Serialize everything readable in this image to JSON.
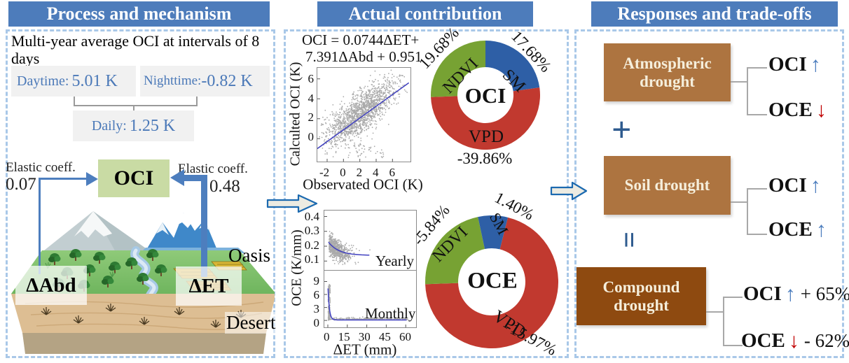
{
  "colors": {
    "header_blue": "#4d7cbb",
    "panel_border_blue": "#a9c8e8",
    "accent_blue": "#4d7ebe",
    "ndvi_green": "#77a233",
    "sm_blue": "#2e5fa6",
    "vpd_red": "#c1392f",
    "drought_brown": "#ad7440",
    "compound_brown": "#8e4a10",
    "oci_box_green": "#c9dba4",
    "down_red": "#c00000",
    "operator_blue": "#2e5b8f"
  },
  "panels": {
    "process": {
      "title": "Process and mechanism",
      "intro": "Multi-year average OCI at intervals of 8 days",
      "daytime": {
        "label": "Daytime:",
        "value": "5.01 K"
      },
      "nighttime": {
        "label": "Nighttime:",
        "value": "-0.82 K"
      },
      "daily": {
        "label": "Daily:",
        "value": "1.25 K"
      },
      "elastic_left": {
        "label": "Elastic coeff.",
        "value": "0.07"
      },
      "elastic_right": {
        "label": "Elastic coeff.",
        "value": "0.48"
      },
      "oci_box": "OCI",
      "oasis": "Oasis",
      "desert": "Desert",
      "delta_abd": "ΔAbd",
      "delta_et": "ΔET"
    },
    "contribution": {
      "title": "Actual contribution"
    },
    "responses": {
      "title": "Responses and trade-offs",
      "plus": "+",
      "equals": "=",
      "atmospheric": {
        "box": "Atmospheric drought",
        "oci": "OCI",
        "oci_arrow": "↑",
        "oce": "OCE",
        "oce_arrow": "↓"
      },
      "soil": {
        "box": "Soil drought",
        "oci": "OCI",
        "oci_arrow": "↑",
        "oce": "OCE",
        "oce_arrow": "↑"
      },
      "compound": {
        "box": "Compound drought",
        "oci": "OCI",
        "oci_arrow": "↑",
        "oci_delta": "+ 65%",
        "oce": "OCE",
        "oce_arrow": "↓",
        "oce_delta": "- 62%"
      }
    }
  },
  "chart_data": [
    {
      "id": "oci_regression_scatter",
      "type": "scatter",
      "title_lines": [
        "OCI = 0.0744ΔET+",
        "7.391ΔAbd + 0.951"
      ],
      "xlabel": "Observated OCI (K)",
      "ylabel": "Calculted OCI (K)",
      "xticks": [
        -2,
        0,
        2,
        4,
        6
      ],
      "yticks": [
        6,
        4,
        2,
        0
      ],
      "xlim": [
        -3.2,
        8.2
      ],
      "ylim": [
        -2.3,
        7.1
      ],
      "grid": false,
      "point_color": "#9b9b9b",
      "trend": {
        "x0": -3.2,
        "y0": -1.0,
        "x1": 8.0,
        "y1": 5.6,
        "color": "#4040c0"
      },
      "gen": {
        "n": 1600,
        "x_mean": 2.2,
        "x_sd": 2.2,
        "slope": 0.58,
        "intercept": 1.35,
        "noise": 1.0,
        "outliers": 45
      }
    },
    {
      "id": "oci_contribution_donut",
      "type": "donut",
      "center_label": "OCI",
      "segments": [
        {
          "name": "SM",
          "label": "17.68%",
          "value": 17.68,
          "color": "#2e5fa6",
          "start": 0,
          "end": 82
        },
        {
          "name": "VPD",
          "label": "-39.86%",
          "value": -39.86,
          "color": "#c1392f",
          "start": 82,
          "end": 268
        },
        {
          "name": "NDVI",
          "label": "19.68%",
          "value": 19.68,
          "color": "#77a233",
          "start": 268,
          "end": 360
        }
      ]
    },
    {
      "id": "oce_vs_delta_et",
      "type": "scatter",
      "xlabel": "ΔET (mm)",
      "ylabel": "OCE (K/mm)",
      "xticks": [
        0,
        15,
        30,
        45,
        60
      ],
      "point_color": "#9b9b9b",
      "curve_color": "#4040c0",
      "panels": [
        {
          "annotation": "Yearly",
          "yticks": [
            0.4,
            0.3,
            0.2,
            0.1
          ],
          "ylim": [
            0.04,
            0.44
          ],
          "xlim": [
            -2.7,
            68
          ]
        },
        {
          "annotation": "Monthly",
          "yticks": [
            9,
            6,
            3,
            0
          ],
          "ylim": [
            -1.6,
            11.5
          ],
          "xlim": [
            -2.7,
            68
          ]
        }
      ]
    },
    {
      "id": "oce_contribution_donut",
      "type": "donut",
      "center_label": "OCE",
      "segments": [
        {
          "name": "VPD",
          "label": "-15.97%",
          "value": -15.97,
          "color": "#c1392f",
          "start": 14,
          "end": 268
        },
        {
          "name": "NDVI",
          "label": "-5.84%",
          "value": -5.84,
          "color": "#77a233",
          "start": 268,
          "end": 348
        },
        {
          "name": "SM",
          "label": "1.40%",
          "value": 1.4,
          "color": "#2e5fa6",
          "start": 348,
          "end": 374
        }
      ]
    }
  ]
}
